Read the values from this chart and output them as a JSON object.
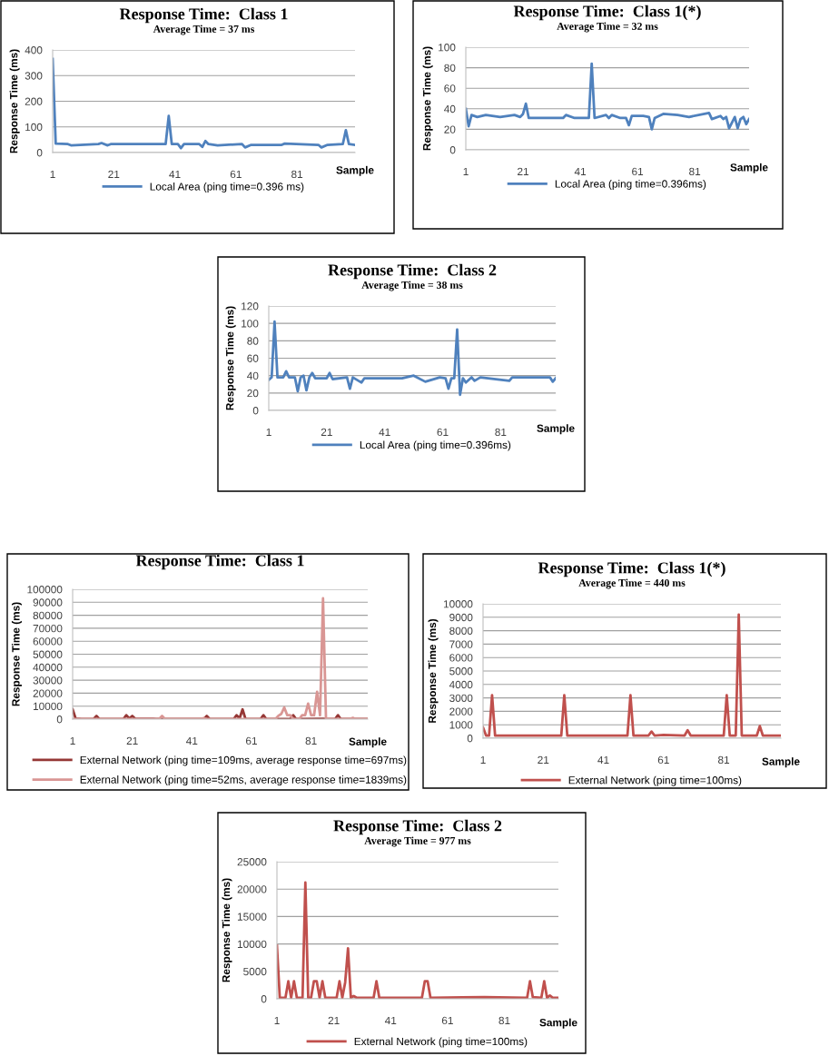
{
  "chart_data": [
    {
      "type": "line",
      "title": "Response Time:  Class 1",
      "subtitle": "Average Time = 37 ms",
      "xlabel": "Sample",
      "ylabel": "Response Time (ms)",
      "xlim": [
        1,
        100
      ],
      "xticks": [
        1,
        21,
        41,
        61,
        81
      ],
      "ylim": [
        0,
        400
      ],
      "yticks": [
        0,
        100,
        200,
        300,
        400
      ],
      "grid": "y",
      "legend": "bottom",
      "series": [
        {
          "name": "Local Area (ping time=0.396 ms)",
          "color": "#4f81bd",
          "x": [
            1,
            2,
            6,
            7,
            16,
            17,
            19,
            20,
            38,
            39,
            40,
            42,
            43,
            44,
            49,
            50,
            51,
            52,
            55,
            63,
            64,
            66,
            76,
            77,
            88,
            89,
            91,
            96,
            97,
            98,
            100
          ],
          "values": [
            365,
            35,
            33,
            28,
            33,
            37,
            28,
            33,
            33,
            143,
            33,
            33,
            17,
            33,
            33,
            22,
            45,
            33,
            28,
            33,
            20,
            30,
            30,
            35,
            30,
            20,
            30,
            33,
            87,
            33,
            30
          ]
        }
      ]
    },
    {
      "type": "line",
      "title": "Response Time:  Class 1(*)",
      "subtitle": "Average Time = 32 ms",
      "xlabel": "Sample",
      "ylabel": "Response Time (ms)",
      "xlim": [
        1,
        100
      ],
      "xticks": [
        1,
        21,
        41,
        61,
        81
      ],
      "ylim": [
        0,
        100
      ],
      "yticks": [
        0,
        20,
        40,
        60,
        80,
        100
      ],
      "grid": "y",
      "legend": "bottom",
      "series": [
        {
          "name": "Local Area (ping time=0.396ms)",
          "color": "#4f81bd",
          "x": [
            1,
            2,
            3,
            5,
            8,
            13,
            18,
            20,
            21,
            22,
            23,
            30,
            35,
            36,
            39,
            43,
            44,
            45,
            46,
            50,
            51,
            52,
            55,
            57,
            58,
            59,
            63,
            65,
            66,
            67,
            70,
            75,
            79,
            86,
            87,
            90,
            91,
            92,
            93,
            95,
            96,
            97,
            98,
            99,
            100
          ],
          "values": [
            40,
            23,
            34,
            32,
            34,
            32,
            34,
            32,
            35,
            45,
            31,
            31,
            31,
            34,
            31,
            31,
            31,
            84,
            31,
            34,
            31,
            34,
            31,
            31,
            24,
            33,
            33,
            32,
            20,
            31,
            35,
            34,
            32,
            36,
            30,
            33,
            30,
            32,
            21,
            32,
            21,
            30,
            32,
            25,
            30
          ]
        }
      ]
    },
    {
      "type": "line",
      "title": "Response Time:  Class 2",
      "subtitle": "Average Time = 38 ms",
      "xlabel": "Sample",
      "ylabel": "Response Time (ms)",
      "xlim": [
        1,
        100
      ],
      "xticks": [
        1,
        21,
        41,
        61,
        81
      ],
      "ylim": [
        0,
        120
      ],
      "yticks": [
        0,
        20,
        40,
        60,
        80,
        100,
        120
      ],
      "grid": "y",
      "legend": "bottom",
      "series": [
        {
          "name": "Local Area (ping time=0.396ms)",
          "color": "#4f81bd",
          "x": [
            1,
            2,
            3,
            4,
            6,
            7,
            8,
            10,
            11,
            12,
            13,
            14,
            15,
            16,
            17,
            21,
            22,
            23,
            28,
            29,
            30,
            33,
            34,
            47,
            51,
            55,
            60,
            62,
            63,
            64,
            65,
            66,
            67,
            68,
            69,
            71,
            72,
            74,
            84,
            85,
            86,
            98,
            99,
            100
          ],
          "values": [
            35,
            38,
            102,
            38,
            38,
            45,
            38,
            38,
            22,
            38,
            40,
            23,
            38,
            43,
            37,
            37,
            43,
            36,
            38,
            25,
            38,
            32,
            37,
            37,
            40,
            33,
            38,
            37,
            25,
            37,
            37,
            93,
            18,
            37,
            32,
            38,
            34,
            38,
            34,
            38,
            38,
            38,
            33,
            37
          ]
        }
      ]
    },
    {
      "type": "line",
      "title": "Response Time:  Class 1",
      "xlabel": "Sample",
      "ylabel": "Response Time (ms)",
      "xlim": [
        1,
        100
      ],
      "xticks": [
        1,
        21,
        41,
        61,
        81
      ],
      "ylim": [
        0,
        100000
      ],
      "yticks": [
        0,
        10000,
        20000,
        30000,
        40000,
        50000,
        60000,
        70000,
        80000,
        90000,
        100000
      ],
      "grid": "y",
      "legend": "bottom",
      "series": [
        {
          "name": "External Network (ping time=109ms, average response time=697ms)",
          "color": "#953735",
          "x": [
            1,
            2,
            4,
            8,
            9,
            10,
            18,
            19,
            20,
            21,
            22,
            28,
            29,
            45,
            46,
            47,
            55,
            56,
            57,
            58,
            59,
            64,
            65,
            66,
            74,
            75,
            76,
            85,
            86,
            89,
            90,
            91,
            100
          ],
          "values": [
            7500,
            500,
            0,
            0,
            2500,
            0,
            0,
            3000,
            500,
            2500,
            300,
            300,
            0,
            0,
            2500,
            0,
            0,
            3000,
            500,
            7500,
            0,
            0,
            3000,
            0,
            0,
            3000,
            0,
            300,
            0,
            0,
            3000,
            0,
            0
          ]
        },
        {
          "name": "External Network (ping time=52ms, average response time=1839ms)",
          "color": "#d99694",
          "x": [
            1,
            30,
            31,
            32,
            44,
            45,
            46,
            69,
            70,
            71,
            72,
            73,
            74,
            75,
            77,
            78,
            79,
            80,
            81,
            82,
            83,
            84,
            85,
            86,
            94,
            95,
            96,
            100
          ],
          "values": [
            0,
            0,
            2500,
            0,
            0,
            800,
            0,
            0,
            2500,
            4000,
            9000,
            3000,
            3000,
            0,
            0,
            3000,
            3000,
            12000,
            3000,
            3000,
            21000,
            3000,
            93000,
            0,
            0,
            1000,
            0,
            0
          ]
        }
      ]
    },
    {
      "type": "line",
      "title": "Response Time:  Class 1(*)",
      "subtitle": "Average Time = 440 ms",
      "xlabel": "Sample",
      "ylabel": "Response Time (ms)",
      "xlim": [
        1,
        100
      ],
      "xticks": [
        1,
        21,
        41,
        61,
        81
      ],
      "ylim": [
        0,
        10000
      ],
      "yticks": [
        0,
        1000,
        2000,
        3000,
        4000,
        5000,
        6000,
        7000,
        8000,
        9000,
        10000
      ],
      "grid": "y",
      "legend": "bottom",
      "series": [
        {
          "name": "External Network (ping time=100ms)",
          "color": "#c0504d",
          "x": [
            1,
            2,
            3,
            4,
            5,
            27,
            28,
            29,
            49,
            50,
            51,
            56,
            57,
            58,
            61,
            68,
            69,
            70,
            81,
            82,
            83,
            85,
            86,
            87,
            92,
            93,
            94,
            100
          ],
          "values": [
            800,
            200,
            200,
            3200,
            200,
            200,
            3200,
            200,
            200,
            3200,
            200,
            200,
            500,
            200,
            250,
            200,
            600,
            200,
            200,
            3200,
            200,
            200,
            9200,
            200,
            200,
            900,
            200,
            200
          ]
        }
      ]
    },
    {
      "type": "line",
      "title": "Response Time:  Class 2",
      "subtitle": "Average Time = 977 ms",
      "xlabel": "Sample",
      "ylabel": "Response Time (ms)",
      "xlim": [
        1,
        100
      ],
      "xticks": [
        1,
        21,
        41,
        61,
        81
      ],
      "ylim": [
        0,
        25000
      ],
      "yticks": [
        0,
        5000,
        10000,
        15000,
        20000,
        25000
      ],
      "grid": "y",
      "legend": "bottom",
      "series": [
        {
          "name": "External Network (ping time=100ms)",
          "color": "#c0504d",
          "x": [
            1,
            2,
            4,
            5,
            6,
            7,
            8,
            10,
            11,
            12,
            13,
            14,
            15,
            16,
            17,
            18,
            22,
            23,
            24,
            25,
            26,
            27,
            28,
            29,
            35,
            36,
            37,
            52,
            53,
            54,
            55,
            74,
            89,
            90,
            91,
            94,
            95,
            96,
            97,
            98,
            100
          ],
          "values": [
            9700,
            200,
            200,
            3200,
            200,
            3200,
            200,
            200,
            21200,
            200,
            200,
            3200,
            3200,
            200,
            3200,
            200,
            200,
            3200,
            200,
            3000,
            9200,
            200,
            500,
            200,
            200,
            3200,
            200,
            200,
            3200,
            3200,
            200,
            300,
            200,
            3200,
            300,
            200,
            3200,
            200,
            600,
            200,
            200
          ]
        }
      ]
    }
  ]
}
